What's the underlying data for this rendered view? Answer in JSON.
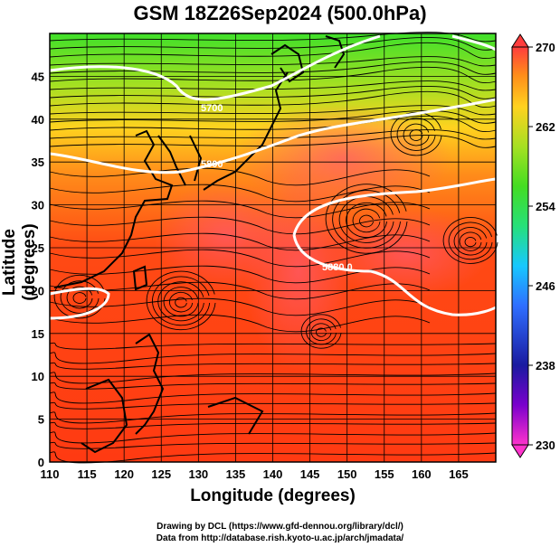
{
  "title": "GSM 18Z26Sep2024 (500.0hPa)",
  "x_label": "Longitude (degrees)",
  "y_label": "Latitude  (degrees)",
  "credits": {
    "line1": "Drawing by DCL (https://www.gfd-dennou.org/library/dcl/)",
    "line2": "Data from http://database.rish.kyoto-u.ac.jp/arch/jmadata/"
  },
  "map": {
    "lon_range": [
      110,
      170
    ],
    "lat_range": [
      0,
      50
    ],
    "x_ticks": [
      "110",
      "115",
      "120",
      "125",
      "130",
      "135",
      "140",
      "145",
      "150",
      "155",
      "160",
      "165"
    ],
    "y_ticks": [
      "0",
      "5",
      "10",
      "15",
      "20",
      "25",
      "30",
      "35",
      "40",
      "45"
    ],
    "field": "temperature (K) shaded with streamlines",
    "contour_labels": [
      "5700",
      "5800",
      "5880.0"
    ]
  },
  "colorbar": {
    "range": [
      230,
      270
    ],
    "ticks": [
      "270",
      "262",
      "254",
      "246",
      "238",
      "230"
    ],
    "colors": [
      "#ff33cc",
      "#7a00cc",
      "#1a1aa0",
      "#2f6fff",
      "#17c8ff",
      "#26e07a",
      "#44dd22",
      "#a6e022",
      "#ffd21f",
      "#ff8c1a",
      "#ff3a12",
      "#ff3d3d"
    ]
  }
}
